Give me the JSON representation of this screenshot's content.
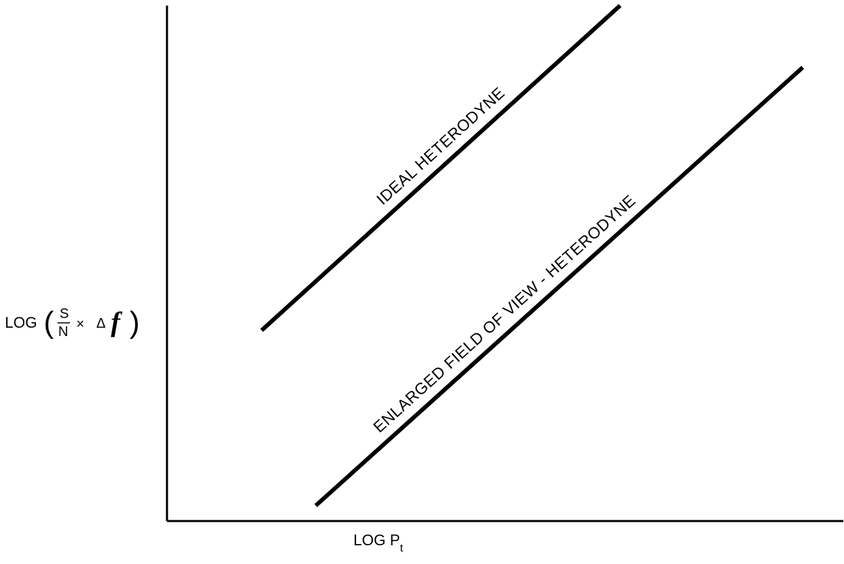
{
  "chart_data": {
    "type": "line",
    "title": "",
    "xlabel": {
      "main": "LOG P",
      "subscript": "t"
    },
    "ylabel": {
      "prefix": "LOG",
      "open_paren": "(",
      "fraction_numerator": "S",
      "fraction_denominator": "N",
      "times": "×",
      "delta": "Δ",
      "f": "f",
      "close_paren": ")"
    },
    "xlim": [
      0,
      100
    ],
    "ylim": [
      0,
      100
    ],
    "grid": false,
    "legend": "none",
    "series": [
      {
        "name": "IDEAL HETERODYNE",
        "points": [
          [
            14,
            37
          ],
          [
            67,
            100
          ]
        ]
      },
      {
        "name": "ENLARGED FIELD OF VIEW - HETERODYNE",
        "points": [
          [
            22,
            3
          ],
          [
            94,
            88
          ]
        ]
      }
    ]
  }
}
